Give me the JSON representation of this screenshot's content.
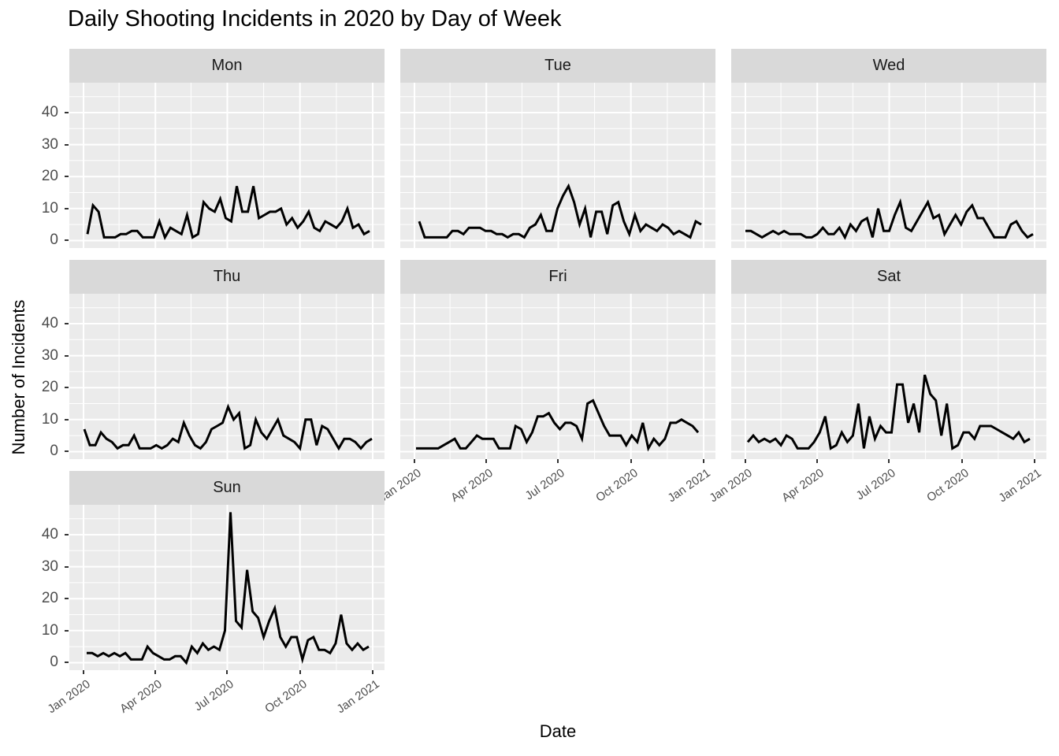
{
  "title": "Daily Shooting Incidents in 2020 by Day of Week",
  "x_axis_title": "Date",
  "y_axis_title": "Number of Incidents",
  "style": {
    "panel_bg": "#EBEBEB",
    "strip_bg": "#D9D9D9",
    "grid": "#FFFFFF",
    "line": "#000000",
    "axis_text": "#4D4D4D",
    "tick": "#333333",
    "strip_text": "#1A1A1A"
  },
  "chart_data": {
    "type": "line",
    "title": "Daily Shooting Incidents in 2020 by Day of Week",
    "xlabel": "Date",
    "ylabel": "Number of Incidents",
    "facet_by": "day of week",
    "grid": "on",
    "legend": "none",
    "x_unit": "one point per occurrence of the weekday during 2020 (weekly)",
    "x_range_days": 366,
    "x_tick_labels": [
      "Jan 2020",
      "Apr 2020",
      "Jul 2020",
      "Oct 2020",
      "Jan 2021"
    ],
    "x_tick_days": [
      0,
      91,
      182,
      274,
      366
    ],
    "x_minor_days": [
      45,
      136,
      228,
      320
    ],
    "y_ticks": [
      0,
      10,
      20,
      30,
      40
    ],
    "y_minor": [
      5,
      15,
      25,
      35,
      45
    ],
    "ylim": [
      -2.35,
      49.35
    ],
    "facets_with_x_axis": [
      "Fri",
      "Sat",
      "Sun"
    ],
    "facets_with_y_axis": [
      "Mon",
      "Thu",
      "Sun"
    ],
    "series": [
      {
        "name": "Mon",
        "first_day_offset": 5,
        "values": [
          2,
          11,
          9,
          1,
          1,
          1,
          2,
          2,
          3,
          3,
          1,
          1,
          1,
          6,
          1,
          4,
          3,
          2,
          8,
          1,
          2,
          12,
          10,
          9,
          13,
          7,
          6,
          17,
          9,
          9,
          17,
          7,
          8,
          9,
          9,
          10,
          5,
          7,
          4,
          6,
          9,
          4,
          3,
          6,
          5,
          4,
          6,
          10,
          4,
          5,
          2,
          3
        ]
      },
      {
        "name": "Tue",
        "first_day_offset": 6,
        "values": [
          6,
          1,
          1,
          1,
          1,
          1,
          3,
          3,
          2,
          4,
          4,
          4,
          3,
          3,
          2,
          2,
          1,
          2,
          2,
          1,
          4,
          5,
          8,
          3,
          3,
          10,
          14,
          17,
          12,
          5,
          10,
          1,
          9,
          9,
          2,
          11,
          12,
          6,
          2,
          8,
          3,
          5,
          4,
          3,
          5,
          4,
          2,
          3,
          2,
          1,
          6,
          5
        ]
      },
      {
        "name": "Wed",
        "first_day_offset": 0,
        "values": [
          3,
          3,
          2,
          1,
          2,
          3,
          2,
          3,
          2,
          2,
          2,
          1,
          1,
          2,
          4,
          2,
          2,
          4,
          1,
          5,
          3,
          6,
          7,
          1,
          10,
          3,
          3,
          8,
          12,
          4,
          3,
          6,
          9,
          12,
          7,
          8,
          2,
          5,
          8,
          5,
          9,
          11,
          7,
          7,
          4,
          1,
          1,
          1,
          5,
          6,
          3,
          1,
          2
        ]
      },
      {
        "name": "Thu",
        "first_day_offset": 1,
        "values": [
          7,
          2,
          2,
          6,
          4,
          3,
          1,
          2,
          2,
          5,
          1,
          1,
          1,
          2,
          1,
          2,
          4,
          3,
          9,
          5,
          2,
          1,
          3,
          7,
          8,
          9,
          14,
          10,
          12,
          1,
          2,
          10,
          6,
          4,
          7,
          10,
          5,
          4,
          3,
          1,
          10,
          10,
          2,
          8,
          7,
          4,
          1,
          4,
          4,
          3,
          1,
          3,
          4
        ]
      },
      {
        "name": "Fri",
        "first_day_offset": 2,
        "values": [
          1,
          1,
          1,
          1,
          1,
          2,
          3,
          4,
          1,
          1,
          3,
          5,
          4,
          4,
          4,
          1,
          1,
          1,
          8,
          7,
          3,
          6,
          11,
          11,
          12,
          9,
          7,
          9,
          9,
          8,
          4,
          15,
          16,
          12,
          8,
          5,
          5,
          5,
          2,
          5,
          3,
          9,
          1,
          4,
          2,
          4,
          9,
          9,
          10,
          9,
          8,
          6
        ]
      },
      {
        "name": "Sat",
        "first_day_offset": 3,
        "values": [
          3,
          5,
          3,
          4,
          3,
          4,
          2,
          5,
          4,
          1,
          1,
          1,
          3,
          6,
          11,
          1,
          2,
          6,
          3,
          5,
          15,
          1,
          11,
          4,
          8,
          6,
          6,
          21,
          21,
          9,
          15,
          6,
          24,
          18,
          16,
          5,
          15,
          1,
          2,
          6,
          6,
          4,
          8,
          8,
          8,
          7,
          6,
          5,
          4,
          6,
          3,
          4
        ]
      },
      {
        "name": "Sun",
        "first_day_offset": 4,
        "values": [
          3,
          3,
          2,
          3,
          2,
          3,
          2,
          3,
          1,
          1,
          1,
          5,
          3,
          2,
          1,
          1,
          2,
          2,
          0,
          5,
          3,
          6,
          4,
          5,
          4,
          10,
          47,
          13,
          11,
          29,
          16,
          14,
          8,
          13,
          17,
          8,
          5,
          8,
          8,
          1,
          7,
          8,
          4,
          4,
          3,
          6,
          15,
          6,
          4,
          6,
          4,
          5
        ]
      }
    ]
  }
}
